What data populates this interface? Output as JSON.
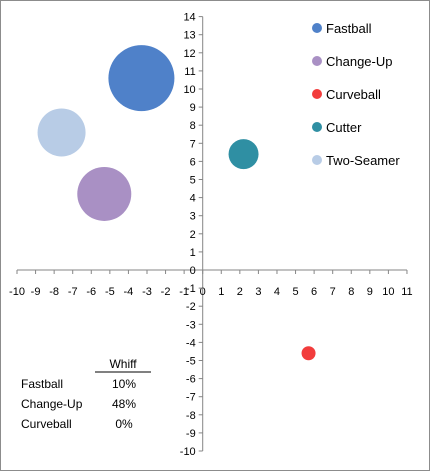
{
  "chart_data": {
    "type": "scatter",
    "variant": "bubble",
    "title": "",
    "xlabel": "",
    "ylabel": "",
    "xlim": [
      -10,
      11
    ],
    "ylim": [
      -10,
      14
    ],
    "x_ticks": [
      -10,
      -9,
      -8,
      -7,
      -6,
      -5,
      -4,
      -3,
      -2,
      -1,
      0,
      1,
      2,
      3,
      4,
      5,
      6,
      7,
      8,
      9,
      10,
      11
    ],
    "y_ticks": [
      -10,
      -9,
      -8,
      -7,
      -6,
      -5,
      -4,
      -3,
      -2,
      -1,
      0,
      1,
      2,
      3,
      4,
      5,
      6,
      7,
      8,
      9,
      10,
      11,
      12,
      13,
      14
    ],
    "grid": false,
    "legend_position": "top-right",
    "series": [
      {
        "name": "Fastball",
        "color": "#4f81c9",
        "x": -3.3,
        "y": 10.6,
        "size": 10
      },
      {
        "name": "Change-Up",
        "color": "#a990c4",
        "x": -5.3,
        "y": 4.2,
        "size": 48
      },
      {
        "name": "Curveball",
        "color": "#f23c3c",
        "x": 5.7,
        "y": -4.6,
        "size": 0
      },
      {
        "name": "Cutter",
        "color": "#2f8fa3",
        "x": 2.2,
        "y": 6.4,
        "size": null
      },
      {
        "name": "Two-Seamer",
        "color": "#b8cce6",
        "x": -7.6,
        "y": 7.6,
        "size": null
      }
    ],
    "bubble_radius_px": [
      33,
      27,
      7,
      15,
      24
    ]
  },
  "table": {
    "header": "Whiff",
    "rows": [
      {
        "label": "Fastball",
        "value": "10%"
      },
      {
        "label": "Change-Up",
        "value": "48%"
      },
      {
        "label": "Curveball",
        "value": "0%"
      }
    ]
  }
}
